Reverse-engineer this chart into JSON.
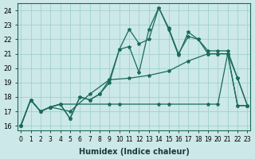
{
  "xlabel": "Humidex (Indice chaleur)",
  "background_color": "#cce8e8",
  "grid_color": "#99cccc",
  "line_color": "#1a6b5a",
  "xlim": [
    -0.3,
    23.3
  ],
  "ylim": [
    15.7,
    24.5
  ],
  "yticks": [
    16,
    17,
    18,
    19,
    20,
    21,
    22,
    23,
    24
  ],
  "xticks": [
    0,
    1,
    2,
    3,
    4,
    5,
    6,
    7,
    8,
    9,
    10,
    11,
    12,
    13,
    14,
    15,
    16,
    17,
    18,
    19,
    20,
    21,
    22,
    23
  ],
  "series": [
    {
      "x": [
        0,
        1,
        2,
        3,
        4,
        5,
        6,
        7,
        8,
        9,
        10,
        11,
        12,
        13,
        14,
        15,
        16,
        17,
        18,
        19,
        20,
        21,
        22,
        23
      ],
      "y": [
        16,
        17.8,
        17,
        17.3,
        17.5,
        16.5,
        18,
        17.8,
        18.2,
        19,
        21.3,
        21.5,
        19.7,
        22.7,
        24.2,
        22.8,
        21.0,
        22.2,
        22.0,
        21.0,
        21.0,
        21.0,
        19.3,
        17.4
      ]
    },
    {
      "x": [
        0,
        1,
        2,
        3,
        4,
        5,
        6,
        7,
        8,
        9,
        10,
        11,
        12,
        13,
        14,
        15,
        16,
        17,
        18,
        19,
        20,
        21,
        22,
        23
      ],
      "y": [
        16,
        17.8,
        17,
        17.3,
        17.5,
        16.5,
        18,
        17.8,
        18.2,
        19.2,
        21.3,
        22.7,
        21.7,
        22,
        24.2,
        22.7,
        20.9,
        22.5,
        22.0,
        21.2,
        21.2,
        21.2,
        19.3,
        17.4
      ]
    },
    {
      "x": [
        0,
        1,
        2,
        3,
        5,
        7,
        9,
        11,
        13,
        15,
        17,
        19,
        20,
        21,
        22,
        23
      ],
      "y": [
        16,
        17.8,
        17,
        17.3,
        17.0,
        18.2,
        19.2,
        19.3,
        19.5,
        19.8,
        20.5,
        21.0,
        21.0,
        21.0,
        17.4,
        17.4
      ]
    },
    {
      "x": [
        0,
        1,
        2,
        3,
        4,
        9,
        10,
        14,
        15,
        19,
        20,
        21,
        22,
        23
      ],
      "y": [
        16,
        17.8,
        17,
        17.3,
        17.5,
        17.5,
        17.5,
        17.5,
        17.5,
        17.5,
        17.5,
        21.0,
        17.4,
        17.4
      ]
    }
  ]
}
